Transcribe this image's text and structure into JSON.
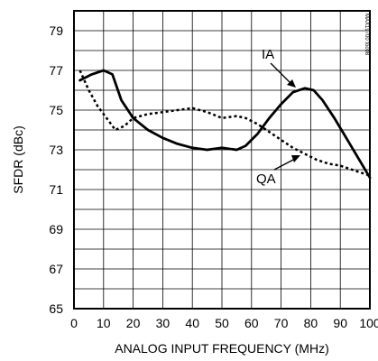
{
  "chart_data": {
    "type": "line",
    "xlabel": "ANALOG INPUT FREQUENCY (MHz)",
    "ylabel": "SFDR (dBc)",
    "xlim": [
      0,
      100
    ],
    "ylim": [
      65,
      80
    ],
    "xticks": [
      "0",
      "10",
      "20",
      "30",
      "40",
      "50",
      "60",
      "70",
      "80",
      "90",
      "100"
    ],
    "yticks": [
      "65",
      "67",
      "69",
      "71",
      "73",
      "75",
      "77",
      "79"
    ],
    "grid": true,
    "corner_label": "MAX19700 toc08",
    "series": [
      {
        "name": "IA",
        "style": "solid",
        "x": [
          2,
          6,
          10,
          13,
          16,
          20,
          25,
          30,
          35,
          40,
          45,
          50,
          55,
          58,
          62,
          66,
          70,
          74,
          78,
          81,
          84,
          88,
          92,
          96,
          100
        ],
        "y": [
          76.5,
          76.8,
          77.0,
          76.8,
          75.5,
          74.6,
          74.0,
          73.6,
          73.3,
          73.1,
          73.0,
          73.1,
          73.0,
          73.2,
          73.8,
          74.6,
          75.3,
          75.9,
          76.1,
          76.0,
          75.5,
          74.6,
          73.6,
          72.6,
          71.6
        ]
      },
      {
        "name": "QA",
        "style": "dashed",
        "x": [
          2,
          5,
          8,
          11,
          14,
          17,
          20,
          25,
          30,
          35,
          40,
          45,
          50,
          55,
          58,
          62,
          66,
          70,
          74,
          78,
          82,
          86,
          90,
          94,
          98,
          100
        ],
        "y": [
          77.0,
          76.0,
          75.2,
          74.6,
          74.0,
          74.2,
          74.6,
          74.8,
          74.9,
          75.0,
          75.1,
          74.9,
          74.6,
          74.7,
          74.6,
          74.3,
          73.9,
          73.5,
          73.1,
          72.8,
          72.5,
          72.3,
          72.2,
          72.0,
          71.8,
          71.7
        ]
      }
    ],
    "annotations": [
      {
        "text": "IA",
        "target_series": "IA"
      },
      {
        "text": "QA",
        "target_series": "QA"
      }
    ]
  }
}
